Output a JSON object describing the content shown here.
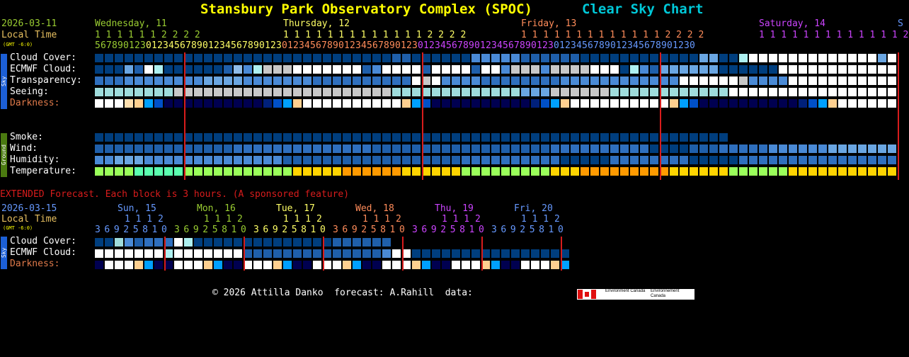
{
  "header": {
    "title": "Stansbury Park Observatory Complex (SPOC)",
    "subtitle": "Clear Sky Chart",
    "date": "2026-03-11",
    "local_time": "Local Time",
    "gmt": "(GMT -6:0)"
  },
  "days": [
    {
      "label": "Wednesday, 11",
      "color": "#9acd32"
    },
    {
      "label": "Thursday, 12",
      "color": "#ffff66"
    },
    {
      "label": "Friday, 13",
      "color": "#ff8c5a"
    },
    {
      "label": "Saturday, 14",
      "color": "#cc44ff"
    },
    {
      "label": "S",
      "color": "#6699ff"
    }
  ],
  "hour_tens": "1 1 1 1 1 1 2 2 2 2",
  "hour_ones_row": "5 6 7 8 9 0 1 2 3 0 1 2 3 4 5 6 7 8 9 0 1 2 3 4 5 6 7 8 9 0 1 2 3 0 1 2 3 4 5 6 7 8 9 0 1 2 3 4 5 6 7 8 9 0 1 2 3 0 1 2 3 4 5 6 7 8 9 0 1 2 3 4 5 6 7 8 9 0 1 2 3 0 1 2 3 4 5 6 7 8 9 0 1 2 3 4 5 6 7 8 9 0 1 2 3 0",
  "sky_label": "Sky",
  "ground_label": "Ground",
  "rows": {
    "cloud": "Cloud Cover:",
    "ecmwf": "ECMWF Cloud:",
    "transparency": "Transparency:",
    "seeing": "Seeing:",
    "darkness": "Darkness:",
    "smoke": "Smoke:",
    "wind": "Wind:",
    "humidity": "Humidity:",
    "temperature": "Temperature:"
  },
  "extended": {
    "note": "EXTENDED Forecast. Each block is 3 hours. (A sponsored feature)",
    "date": "2026-03-15",
    "local_time": "Local Time",
    "gmt": "(GMT -6:0)",
    "days": [
      {
        "label": "Sun, 15",
        "color": "#6699ff"
      },
      {
        "label": "Mon, 16",
        "color": "#9acd32"
      },
      {
        "label": "Tue, 17",
        "color": "#ffff66"
      },
      {
        "label": "Wed, 18",
        "color": "#ff8c5a"
      },
      {
        "label": "Thu, 19",
        "color": "#cc44ff"
      },
      {
        "label": "Fri, 20",
        "color": "#6699ff"
      }
    ],
    "tens": "1 1 1 2",
    "ones": "3 6 9 2 5 8 1 0",
    "rows": {
      "cloud": "Cloud Cover:",
      "ecmwf": "ECMWF Cloud:",
      "darkness": "Darkness:"
    }
  },
  "footer": {
    "copyright": "© 2026 Attilla Danko  forecast: A.Rahill  data:",
    "logo_en": "Environment Canada",
    "logo_fr": "Environnement Canada"
  },
  "colors": {
    "cloud_clear": "#003e7e",
    "cloud_mid": "#4a8ad6",
    "cloud_white": "#ffffff",
    "temp_green": "#9aff5a",
    "temp_yellow": "#ffd400",
    "temp_orange": "#ff9a00",
    "temp_cyan": "#5affb0",
    "midnight_line": "#d81c1c"
  }
}
